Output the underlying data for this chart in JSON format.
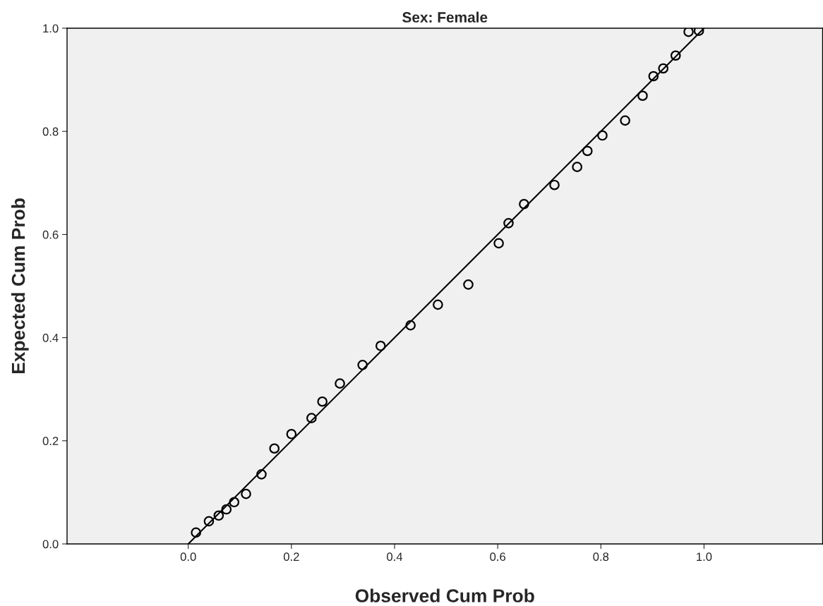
{
  "chart_data": {
    "type": "scatter",
    "title": "Sex: Female",
    "xlabel": "Observed Cum Prob",
    "ylabel": "Expected Cum Prob",
    "xlim": [
      -0.235,
      1.23
    ],
    "ylim": [
      0,
      1.0
    ],
    "xticks": [
      {
        "value": 0,
        "label": "0.0"
      },
      0.2,
      0.4,
      0.6,
      0.8,
      {
        "value": 1,
        "label": "1.0"
      }
    ],
    "yticks": [
      {
        "value": 0,
        "label": "0.0"
      },
      0.2,
      0.4,
      0.6,
      0.8,
      {
        "value": 1,
        "label": "1.0"
      }
    ],
    "grid": false,
    "legend": false,
    "series": [
      {
        "marker": "circle",
        "color": "#000000",
        "x": [
          0.015,
          0.04,
          0.059,
          0.074,
          0.089,
          0.112,
          0.142,
          0.167,
          0.2,
          0.239,
          0.26,
          0.294,
          0.338,
          0.373,
          0.431,
          0.484,
          0.543,
          0.602,
          0.621,
          0.651,
          0.71,
          0.754,
          0.774,
          0.803,
          0.847,
          0.881,
          0.902,
          0.921,
          0.945,
          0.97,
          0.99
        ],
        "values": [
          0.022,
          0.044,
          0.055,
          0.067,
          0.081,
          0.097,
          0.135,
          0.185,
          0.213,
          0.244,
          0.276,
          0.311,
          0.347,
          0.384,
          0.424,
          0.464,
          0.503,
          0.583,
          0.622,
          0.659,
          0.696,
          0.731,
          0.762,
          0.792,
          0.821,
          0.869,
          0.907,
          0.922,
          0.947,
          0.993,
          0.995
        ]
      },
      {
        "type": "line",
        "color": "#000000",
        "x": [
          0.0,
          1.0
        ],
        "values": [
          0.0,
          1.0
        ]
      }
    ]
  }
}
